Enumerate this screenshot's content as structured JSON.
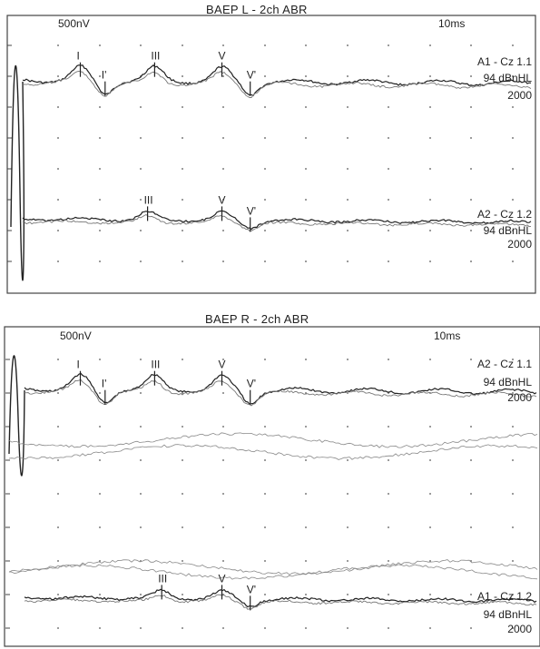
{
  "chart_data": [
    {
      "type": "line",
      "title": "BAEP L  - 2ch ABR",
      "amp_scale": "500nV",
      "time_scale": "10ms",
      "grid": true,
      "channels": [
        {
          "name": "A1 - Cz 1.1",
          "stimulus": "94 dBnHL",
          "averages": "2000",
          "peaks": [
            {
              "label": "I",
              "t": 1.5
            },
            {
              "label": "I'",
              "t": 2.2
            },
            {
              "label": "III",
              "t": 3.6
            },
            {
              "label": "V",
              "t": 5.5
            },
            {
              "label": "V'",
              "t": 6.3
            }
          ]
        },
        {
          "name": "A2 - Cz 1.2",
          "stimulus": "94 dBnHL",
          "averages": "2000",
          "peaks": [
            {
              "label": "III",
              "t": 3.4
            },
            {
              "label": "V",
              "t": 5.5
            },
            {
              "label": "V'",
              "t": 6.3
            }
          ]
        }
      ]
    },
    {
      "type": "line",
      "title": "BAEP R  - 2ch ABR",
      "amp_scale": "500nV",
      "time_scale": "10ms",
      "grid": true,
      "channels": [
        {
          "name": "A2 - Cz 1.1",
          "stimulus": "94 dBnHL",
          "averages": "2000",
          "peaks": [
            {
              "label": "I",
              "t": 1.5
            },
            {
              "label": "I'",
              "t": 2.2
            },
            {
              "label": "III",
              "t": 3.6
            },
            {
              "label": "V",
              "t": 5.5
            },
            {
              "label": "V'",
              "t": 6.3
            }
          ]
        },
        {
          "name": "A1 - Cz 1.2",
          "stimulus": "94 dBnHL",
          "averages": "2000",
          "peaks": [
            {
              "label": "III",
              "t": 3.8
            },
            {
              "label": "V",
              "t": 5.5
            },
            {
              "label": "V'",
              "t": 6.3
            }
          ]
        }
      ]
    }
  ]
}
